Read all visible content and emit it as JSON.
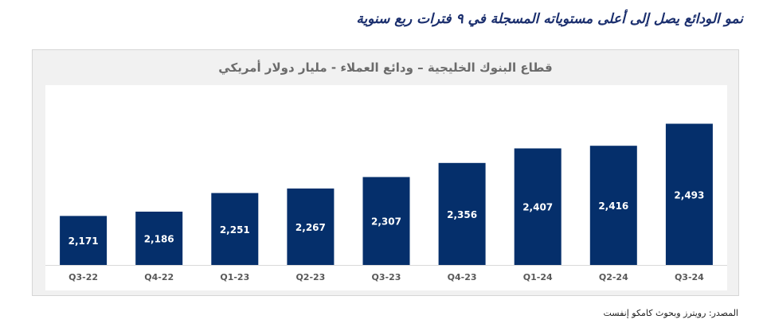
{
  "headline": "نمو الودائع يصل إلى أعلى مستوياته المسجلة في ٩ فترات ربع سنوية",
  "source": "المصدر: رويترز وبحوث كامكو إنفست",
  "colors": {
    "bar": "#052f6b",
    "headline": "#1b2f6e",
    "panel_background": "#f1f1f1",
    "label": "#595959"
  },
  "chart_data": {
    "type": "bar",
    "title": "قطاع البنوك الخليجية – ودائع العملاء - مليار دولار أمريكي",
    "categories": [
      "Q3-22",
      "Q4-22",
      "Q1-23",
      "Q2-23",
      "Q3-23",
      "Q4-23",
      "Q1-24",
      "Q2-24",
      "Q3-24"
    ],
    "values": [
      2171,
      2186,
      2251,
      2267,
      2307,
      2356,
      2407,
      2416,
      2493
    ],
    "value_labels": [
      "2,171",
      "2,186",
      "2,251",
      "2,267",
      "2,307",
      "2,356",
      "2,407",
      "2,416",
      "2,493"
    ],
    "ylim": [
      2000,
      2550
    ],
    "grid": false,
    "legend": "none"
  }
}
